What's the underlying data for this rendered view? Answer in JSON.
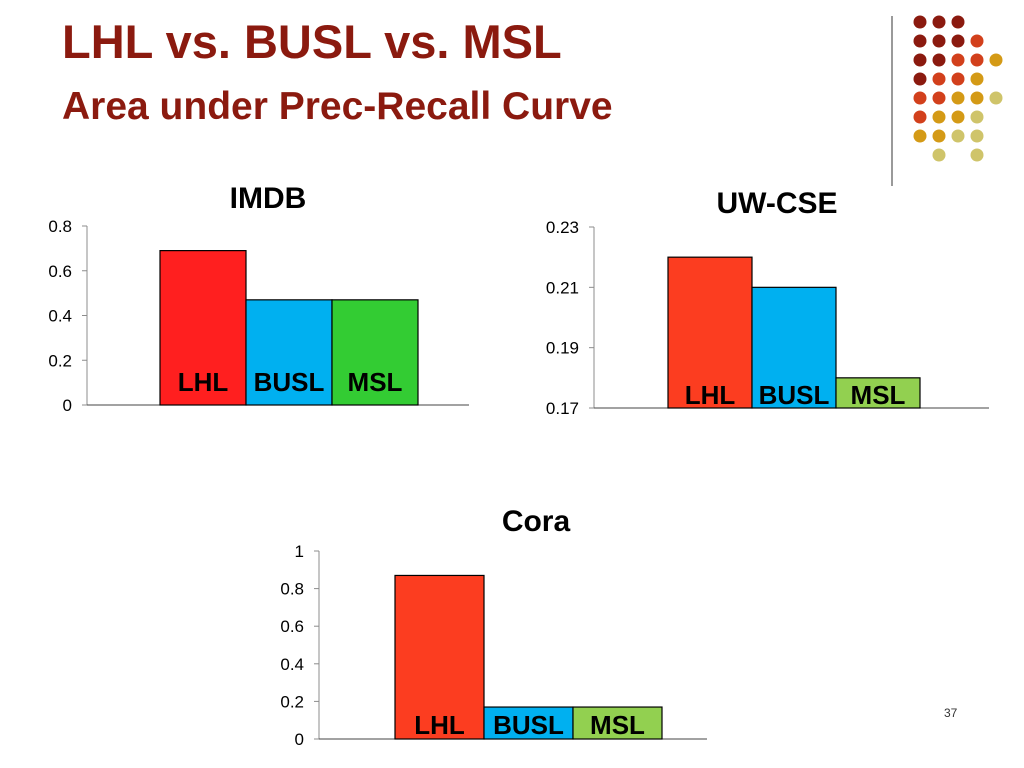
{
  "slide": {
    "title": "LHL vs. BUSL vs. MSL",
    "subtitle": "Area under Prec-Recall Curve",
    "page_number": "37"
  },
  "colors": {
    "title": "#8b1a0f",
    "decor_dots": [
      "#8b1a0f",
      "#d2401c",
      "#d49a16",
      "#cfc46a"
    ]
  },
  "chart_data": [
    {
      "type": "bar",
      "title": "IMDB",
      "categories": [
        "LHL",
        "BUSL",
        "MSL"
      ],
      "values": [
        0.69,
        0.47,
        0.47
      ],
      "ylim": [
        0,
        0.8
      ],
      "yticks": [
        "0",
        "0.2",
        "0.4",
        "0.6",
        "0.8"
      ],
      "colors": [
        "#ff1f1f",
        "#00b0f0",
        "#33cc33"
      ],
      "grid": false,
      "bar_labels": true
    },
    {
      "type": "bar",
      "title": "UW-CSE",
      "categories": [
        "LHL",
        "BUSL",
        "MSL"
      ],
      "values": [
        0.22,
        0.21,
        0.18
      ],
      "ylim": [
        0.17,
        0.23
      ],
      "yticks": [
        "0.17",
        "0.19",
        "0.21",
        "0.23"
      ],
      "colors": [
        "#fc3d20",
        "#00b0f0",
        "#92d050"
      ],
      "grid": false,
      "bar_labels": true
    },
    {
      "type": "bar",
      "title": "Cora",
      "categories": [
        "LHL",
        "BUSL",
        "MSL"
      ],
      "values": [
        0.87,
        0.17,
        0.17
      ],
      "ylim": [
        0,
        1
      ],
      "yticks": [
        "0",
        "0.2",
        "0.4",
        "0.6",
        "0.8",
        "1"
      ],
      "colors": [
        "#fc3d20",
        "#00b0f0",
        "#92d050"
      ],
      "grid": false,
      "bar_labels": true
    }
  ]
}
